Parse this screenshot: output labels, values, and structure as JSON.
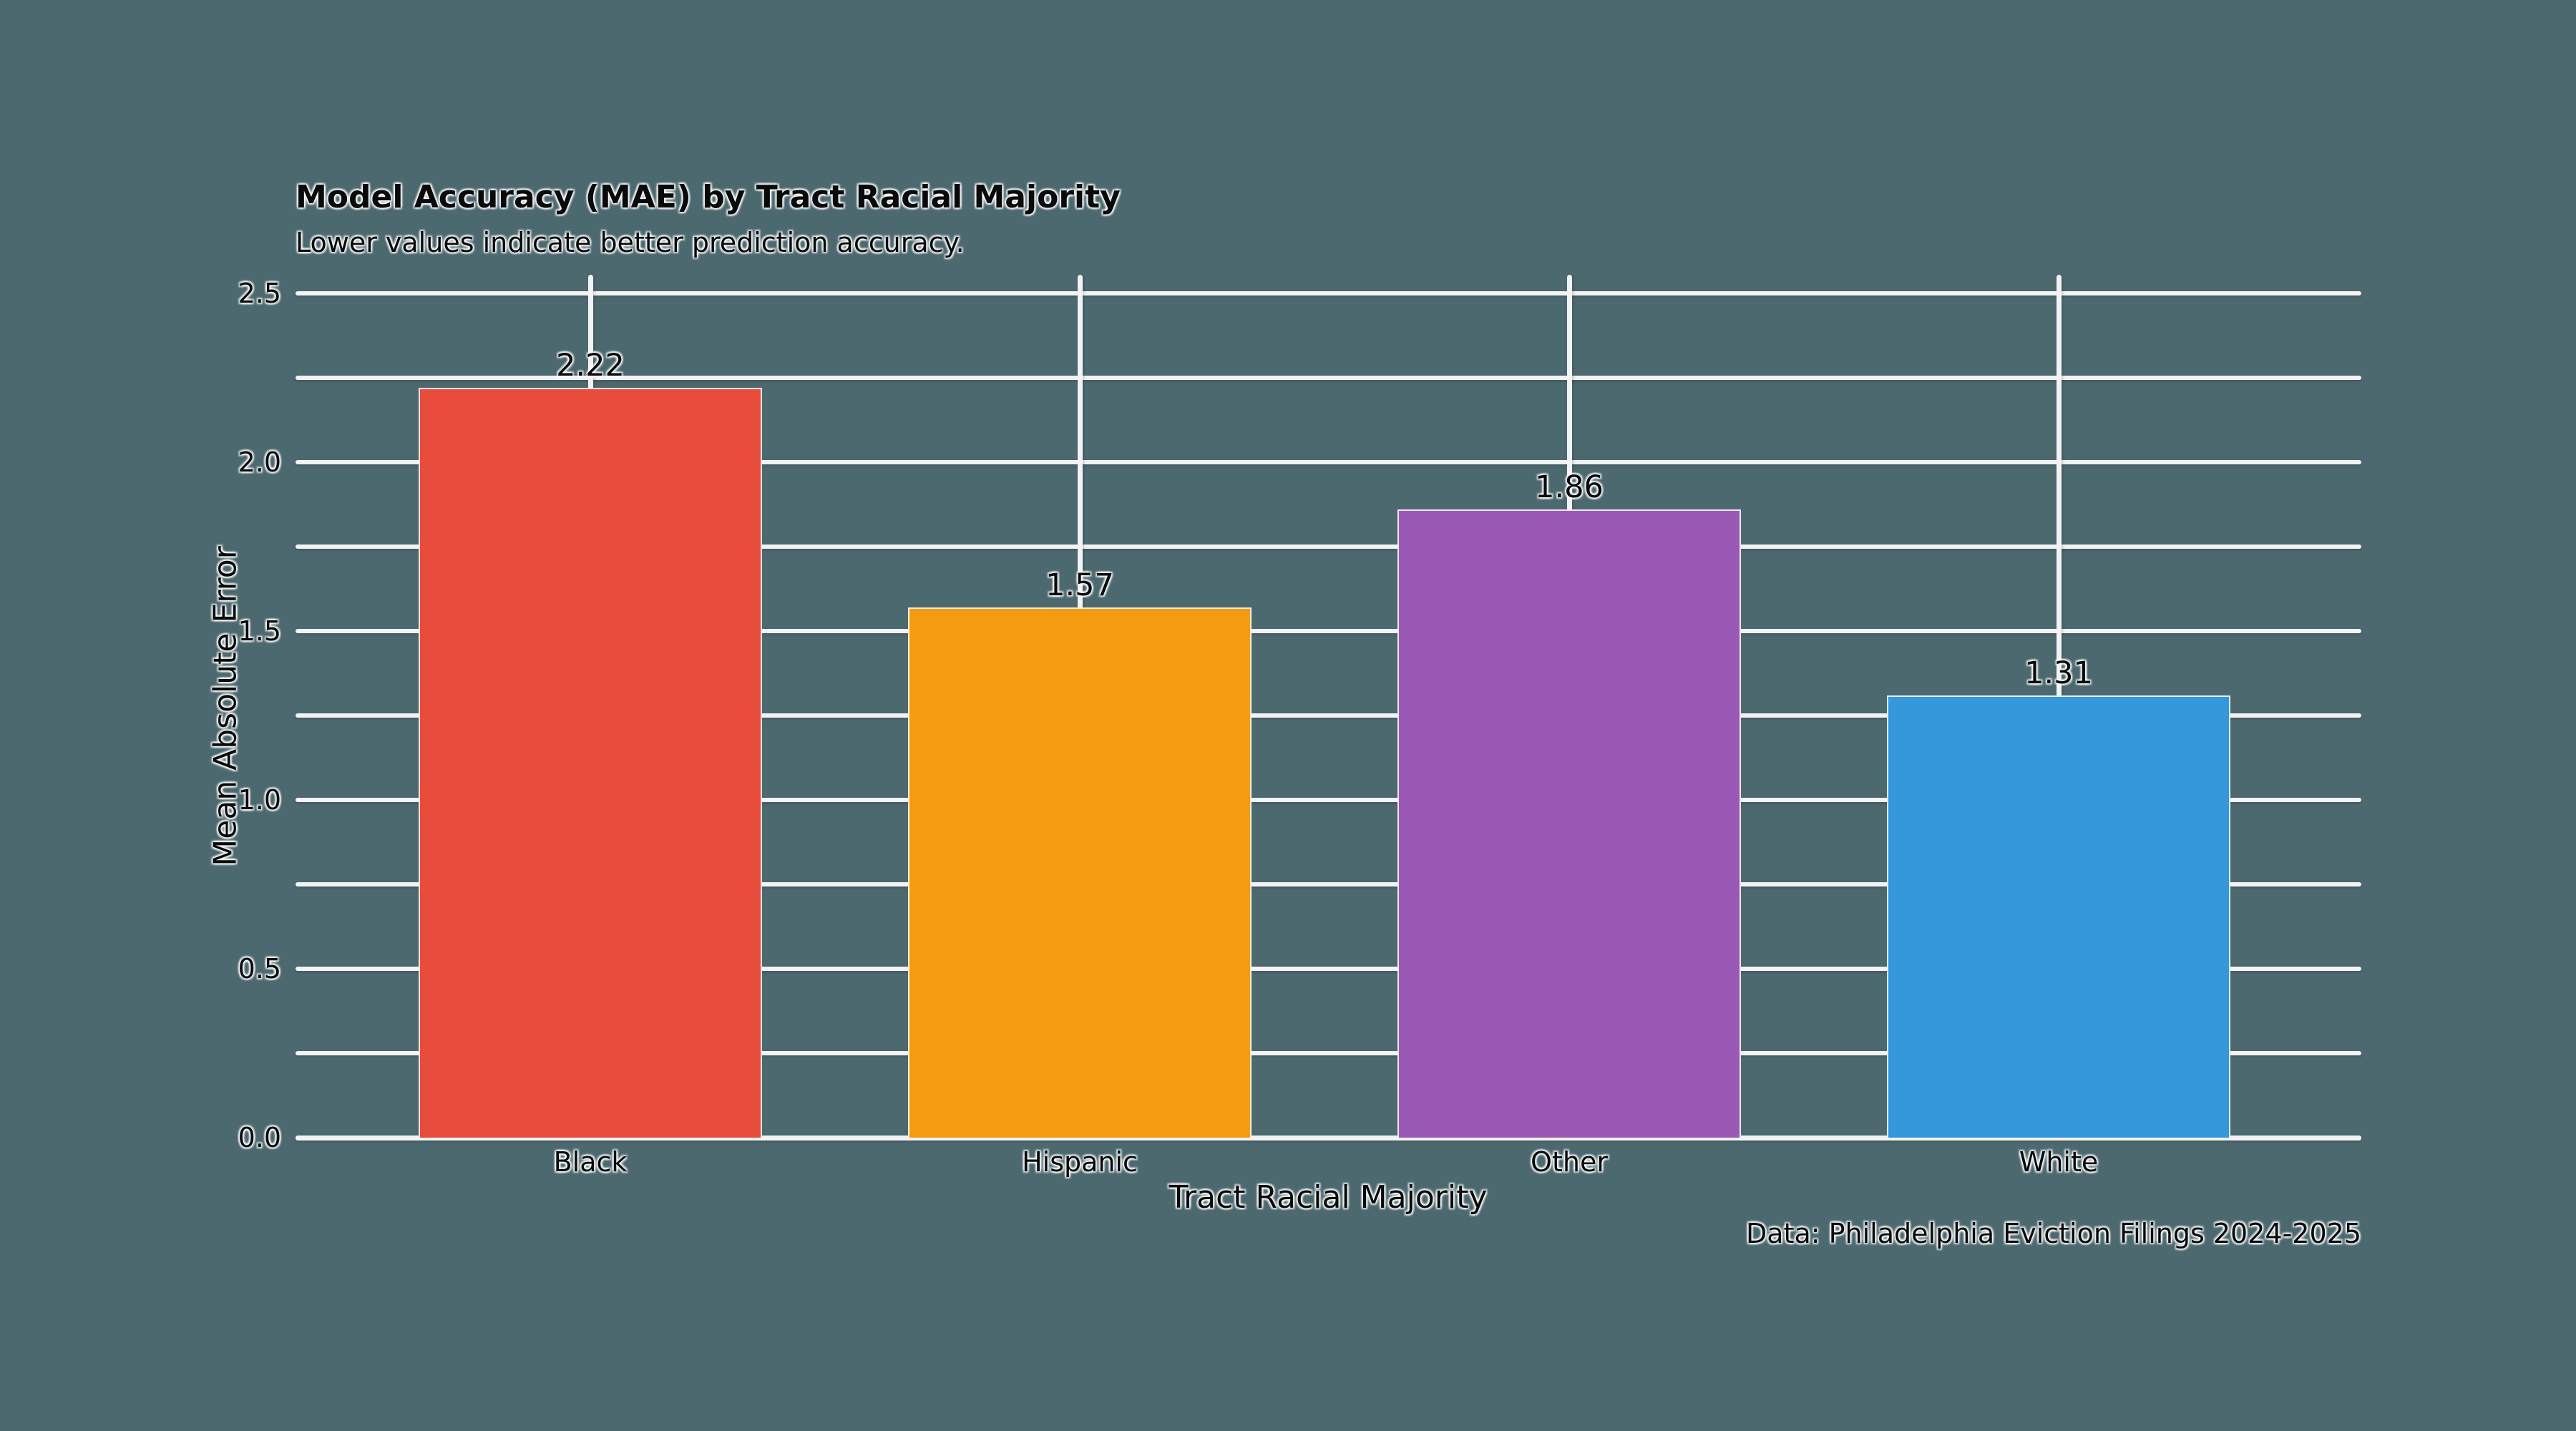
{
  "figure": {
    "background_color": "#4C6970",
    "gridline_color": "#F3F3F3"
  },
  "chart_data": {
    "type": "bar",
    "title": "Model Accuracy (MAE) by Tract Racial Majority",
    "subtitle": "Lower values indicate better prediction accuracy.",
    "xlabel": "Tract Racial Majority",
    "ylabel": "Mean Absolute Error",
    "caption": "Data: Philadelphia Eviction Filings 2024-2025",
    "categories": [
      "Black",
      "Hispanic",
      "Other",
      "White"
    ],
    "values": [
      2.22,
      1.57,
      1.86,
      1.31
    ],
    "value_labels": [
      "2.22",
      "1.57",
      "1.86",
      "1.31"
    ],
    "bar_colors": [
      "#E74C3C",
      "#F39C12",
      "#9B59B6",
      "#3498DB"
    ],
    "ylim": [
      0,
      2.555
    ],
    "y_major_ticks": [
      0.0,
      0.5,
      1.0,
      1.5,
      2.0,
      2.5
    ],
    "y_major_tick_labels": [
      "0.0",
      "0.5",
      "1.0",
      "1.5",
      "2.0",
      "2.5"
    ],
    "y_minor_step": 0.25,
    "grid": true,
    "vertical_gridlines_at_categories": true,
    "legend": false,
    "text_color": "#0a0a0a"
  }
}
